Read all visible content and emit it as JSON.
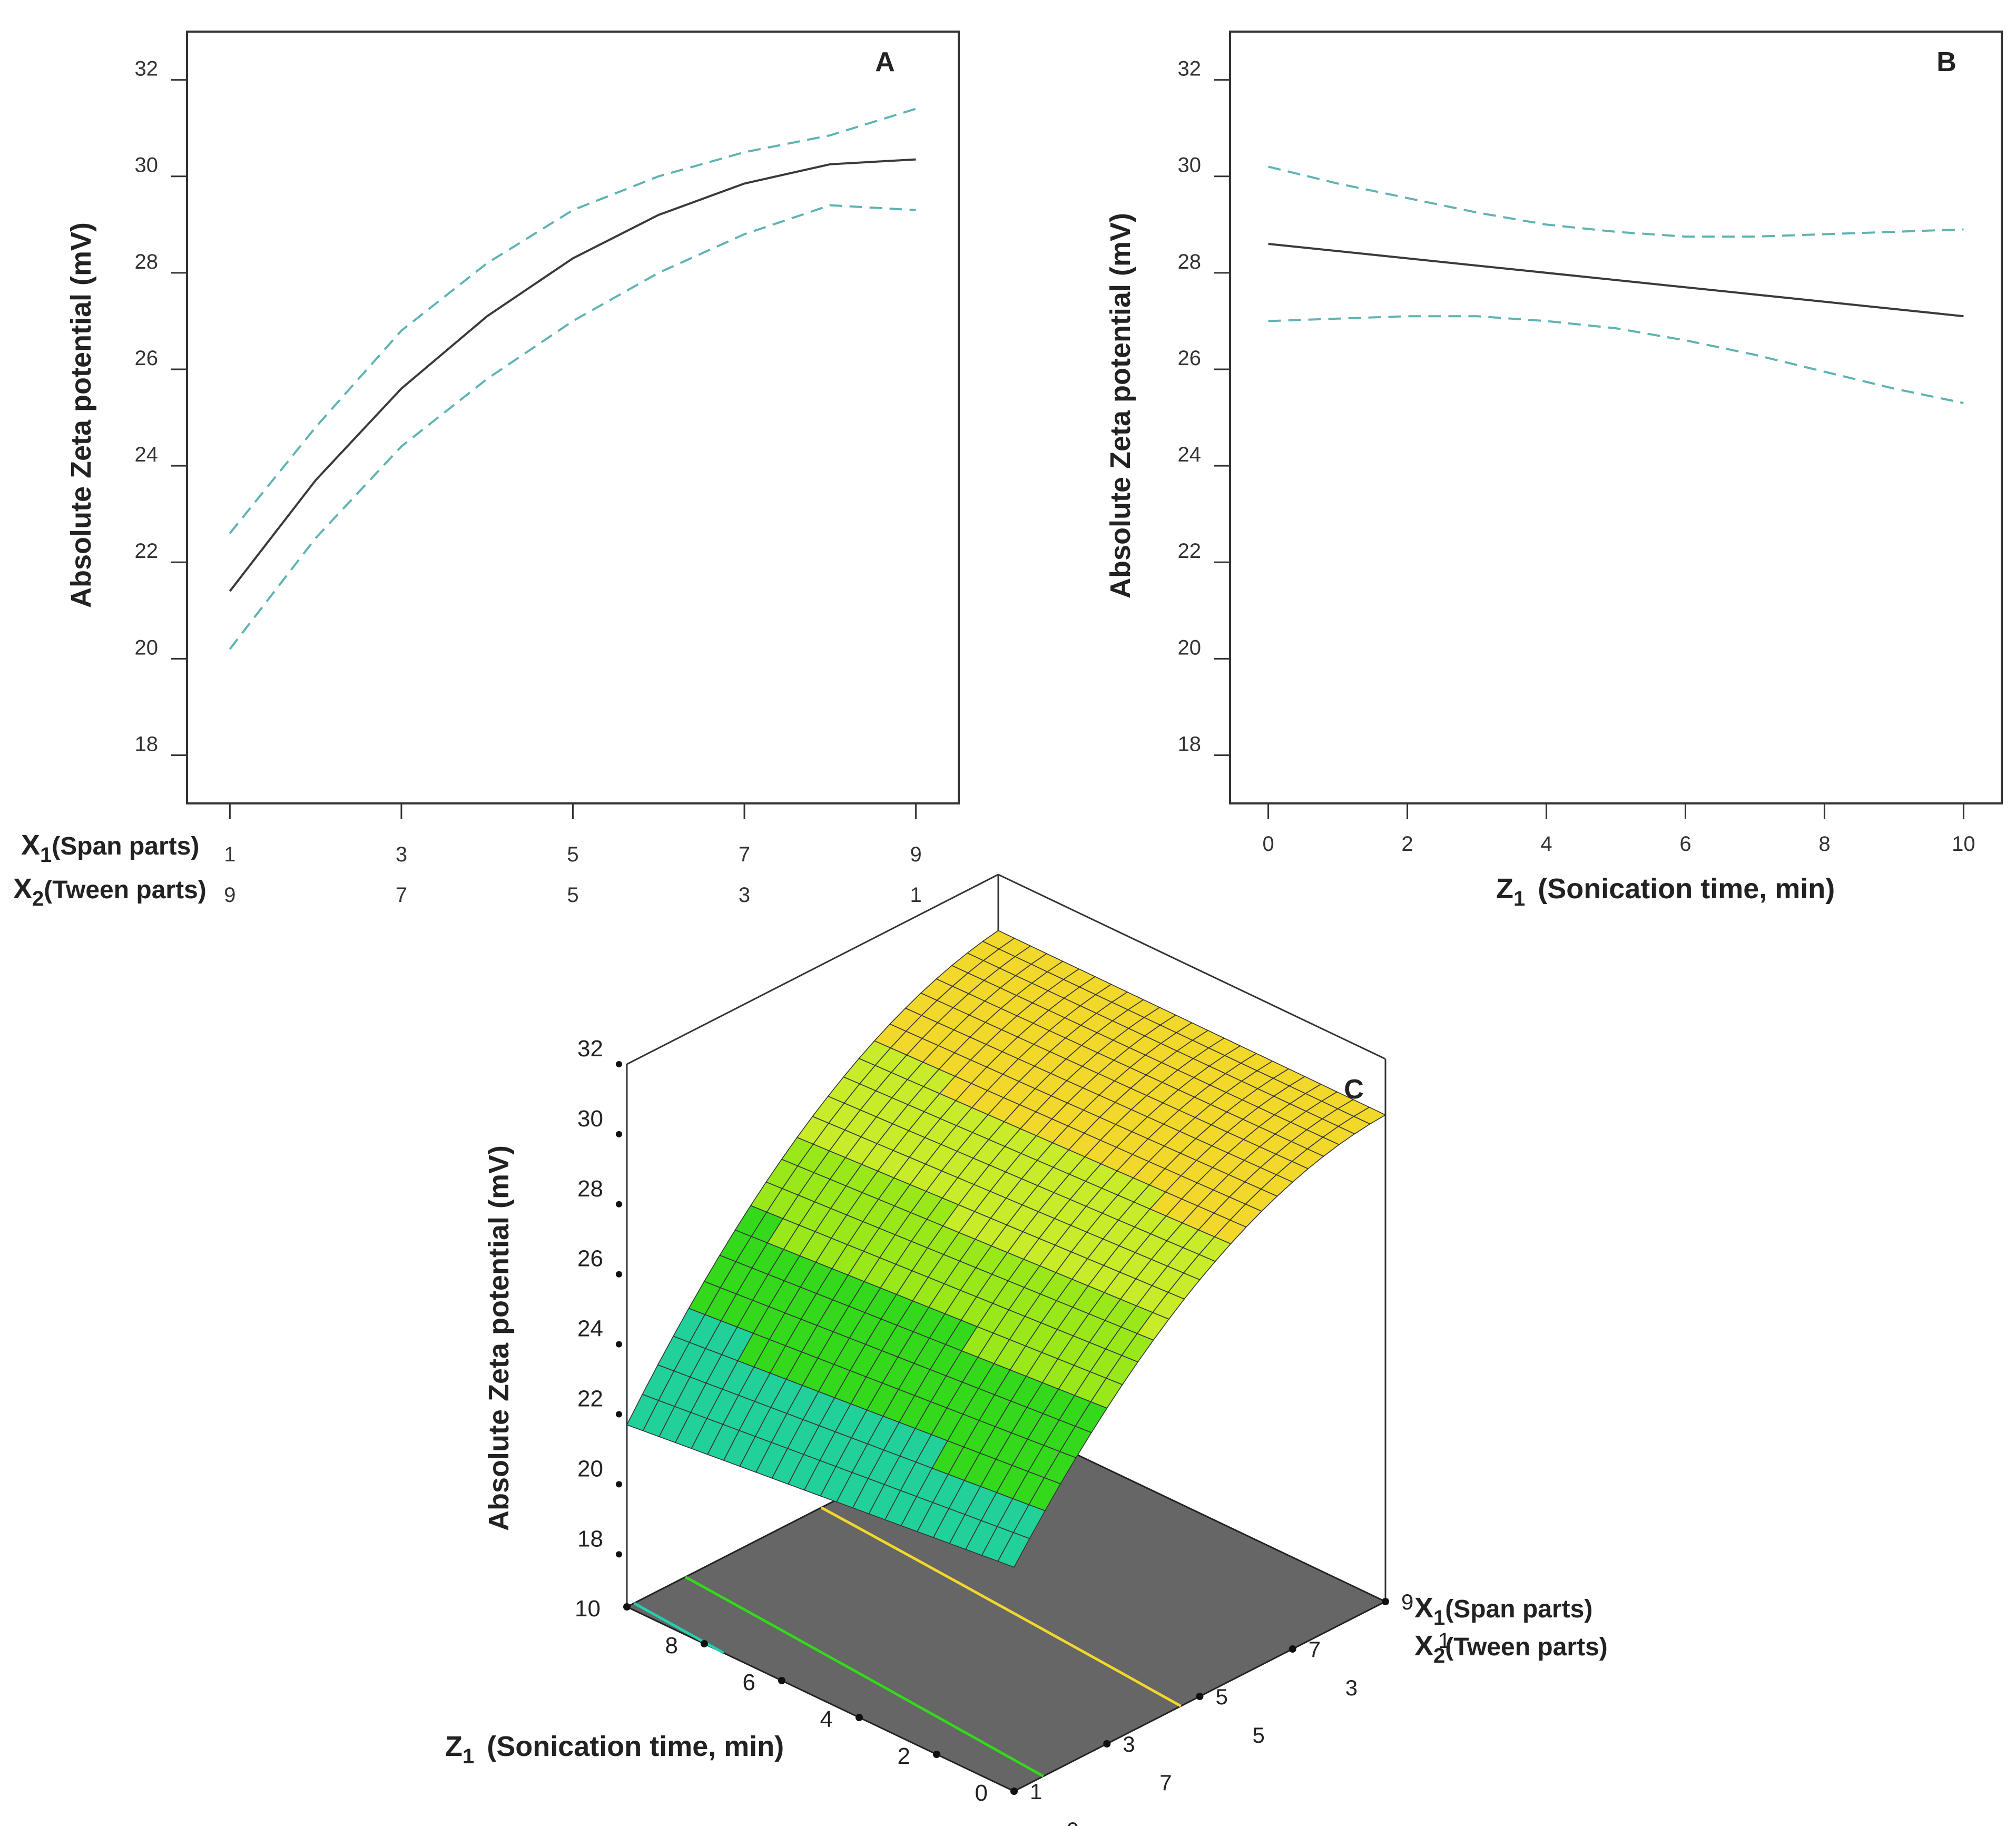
{
  "colors": {
    "fit_line": "#3a3a3a",
    "ci_line": "#5fb3b3",
    "axis": "#333333",
    "floor": "#666666",
    "surface_low": "#1a73e8",
    "surface_mid": "#22cc22",
    "surface_high": "#f5d020"
  },
  "chart_data": [
    {
      "id": "A",
      "type": "line",
      "panel_label": "A",
      "ylabel": "Absolute Zeta potential (mV)",
      "ylim": [
        17,
        33
      ],
      "yticks": [
        18,
        20,
        22,
        24,
        26,
        28,
        30,
        32
      ],
      "x1_label_main": "X",
      "x1_label_sub": "1",
      "x1_label_rest": "(Span parts)",
      "x2_label_main": "X",
      "x2_label_sub": "2",
      "x2_label_rest": "(Tween parts)",
      "x_domain": [
        0.5,
        9.5
      ],
      "x1_ticks": [
        "1",
        "3",
        "5",
        "7",
        "9"
      ],
      "x2_ticks": [
        "9",
        "7",
        "5",
        "3",
        "1"
      ],
      "x1_values": [
        1,
        3,
        5,
        7,
        9
      ],
      "series": [
        {
          "name": "fit",
          "x": [
            1,
            2,
            3,
            4,
            5,
            6,
            7,
            8,
            9
          ],
          "y": [
            21.4,
            23.7,
            25.6,
            27.1,
            28.3,
            29.2,
            29.85,
            30.25,
            30.35
          ]
        },
        {
          "name": "upper_ci",
          "x": [
            1,
            2,
            3,
            4,
            5,
            6,
            7,
            8,
            9
          ],
          "y": [
            22.6,
            24.8,
            26.8,
            28.2,
            29.3,
            30.0,
            30.5,
            30.85,
            31.4
          ]
        },
        {
          "name": "lower_ci",
          "x": [
            1,
            2,
            3,
            4,
            5,
            6,
            7,
            8,
            9
          ],
          "y": [
            20.2,
            22.5,
            24.4,
            25.8,
            27.0,
            28.0,
            28.8,
            29.4,
            29.3
          ]
        }
      ]
    },
    {
      "id": "B",
      "type": "line",
      "panel_label": "B",
      "ylabel": "Absolute Zeta potential (mV)",
      "ylim": [
        17,
        33
      ],
      "yticks": [
        18,
        20,
        22,
        24,
        26,
        28,
        30,
        32
      ],
      "xlim": [
        -0.55,
        10.55
      ],
      "xticks": [
        0,
        2,
        4,
        6,
        8,
        10
      ],
      "xlabel_main": "Z",
      "xlabel_sub": "1",
      "xlabel_rest": "(Sonication time, min)",
      "series": [
        {
          "name": "fit",
          "x": [
            0,
            10
          ],
          "y": [
            28.6,
            27.1
          ]
        },
        {
          "name": "upper_ci",
          "x": [
            0,
            1,
            2,
            3,
            4,
            5,
            6,
            7,
            8,
            9,
            10
          ],
          "y": [
            30.2,
            29.85,
            29.55,
            29.25,
            29.0,
            28.85,
            28.75,
            28.75,
            28.8,
            28.85,
            28.9
          ]
        },
        {
          "name": "lower_ci",
          "x": [
            0,
            1,
            2,
            3,
            4,
            5,
            6,
            7,
            8,
            9,
            10
          ],
          "y": [
            27.0,
            27.05,
            27.1,
            27.1,
            27.0,
            26.85,
            26.6,
            26.3,
            25.95,
            25.6,
            25.3
          ]
        }
      ]
    },
    {
      "id": "C",
      "type": "surface",
      "panel_label": "C",
      "zlabel": "Absolute Zeta potential (mV)",
      "zlim": [
        16.5,
        32
      ],
      "zticks": [
        18,
        20,
        22,
        24,
        26,
        28,
        30,
        32
      ],
      "z1_label_main": "Z",
      "z1_label_sub": "1",
      "z1_label_rest": "(Sonication time, min)",
      "z1_ticks": [
        0,
        2,
        4,
        6,
        8,
        10
      ],
      "x1_label_main": "X",
      "x1_label_sub": "1",
      "x1_label_rest": "(Span parts)",
      "x2_label_main": "X",
      "x2_label_sub": "2",
      "x2_label_rest": "(Tween parts)",
      "x1_ticks": [
        "1",
        "3",
        "5",
        "7",
        "9"
      ],
      "x2_ticks": [
        "9",
        "7",
        "5",
        "3",
        "1"
      ],
      "x1_values": [
        1,
        3,
        5,
        7,
        9
      ],
      "contour_levels": [
        20,
        22,
        24,
        28
      ],
      "color_bands": [
        {
          "max": 20,
          "color": "#1a7fe8"
        },
        {
          "max": 22,
          "color": "#18b8f0"
        },
        {
          "max": 24,
          "color": "#22d09a"
        },
        {
          "max": 26,
          "color": "#33d91a"
        },
        {
          "max": 27.5,
          "color": "#99e81a"
        },
        {
          "max": 29,
          "color": "#c8ec2a"
        },
        {
          "max": 99,
          "color": "#f2d82a"
        }
      ]
    }
  ]
}
